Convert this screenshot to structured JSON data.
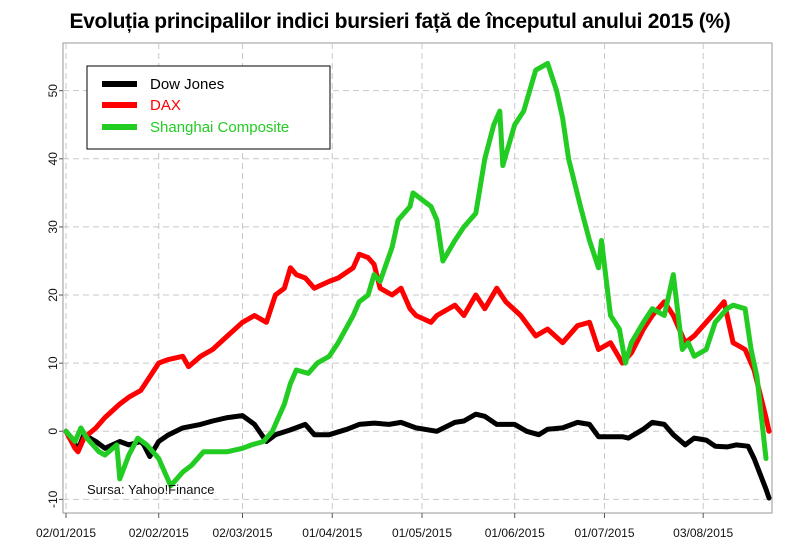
{
  "chart_data": {
    "type": "line",
    "title": "Evoluția principalilor indici bursieri față de începutul anului 2015 (%)",
    "xlabel": "",
    "ylabel": "",
    "ylim": [
      -12,
      57
    ],
    "yticks": [
      -10,
      0,
      10,
      20,
      30,
      40,
      50
    ],
    "xlim": [
      "2015-01-01",
      "2015-08-26"
    ],
    "xticks": [
      "02/01/2015",
      "02/02/2015",
      "02/03/2015",
      "01/04/2015",
      "01/05/2015",
      "01/06/2015",
      "01/07/2015",
      "03/08/2015"
    ],
    "grid": true,
    "legend_position": "top-left",
    "source": "Sursa: Yahoo!Finance",
    "series": [
      {
        "name": "Dow Jones",
        "color": "#000000",
        "points": [
          [
            "2015-01-02",
            0
          ],
          [
            "2015-01-05",
            -1.9
          ],
          [
            "2015-01-06",
            -2.7
          ],
          [
            "2015-01-08",
            -0.5
          ],
          [
            "2015-01-12",
            -1.5
          ],
          [
            "2015-01-15",
            -2.5
          ],
          [
            "2015-01-20",
            -1.5
          ],
          [
            "2015-01-23",
            -2.0
          ],
          [
            "2015-01-27",
            -1.5
          ],
          [
            "2015-01-28",
            -2.0
          ],
          [
            "2015-01-30",
            -3.7
          ],
          [
            "2015-02-02",
            -1.5
          ],
          [
            "2015-02-05",
            -0.6
          ],
          [
            "2015-02-10",
            0.5
          ],
          [
            "2015-02-16",
            1.0
          ],
          [
            "2015-02-20",
            1.5
          ],
          [
            "2015-02-25",
            2.0
          ],
          [
            "2015-03-02",
            2.3
          ],
          [
            "2015-03-06",
            1.0
          ],
          [
            "2015-03-10",
            -1.5
          ],
          [
            "2015-03-13",
            -0.5
          ],
          [
            "2015-03-18",
            0.2
          ],
          [
            "2015-03-23",
            1.0
          ],
          [
            "2015-03-26",
            -0.5
          ],
          [
            "2015-03-31",
            -0.5
          ],
          [
            "2015-04-06",
            0.3
          ],
          [
            "2015-04-10",
            1.0
          ],
          [
            "2015-04-15",
            1.2
          ],
          [
            "2015-04-20",
            1.0
          ],
          [
            "2015-04-24",
            1.3
          ],
          [
            "2015-04-29",
            0.5
          ],
          [
            "2015-05-06",
            0.0
          ],
          [
            "2015-05-12",
            1.3
          ],
          [
            "2015-05-15",
            1.5
          ],
          [
            "2015-05-19",
            2.5
          ],
          [
            "2015-05-22",
            2.2
          ],
          [
            "2015-05-26",
            1.0
          ],
          [
            "2015-06-01",
            1.0
          ],
          [
            "2015-06-05",
            0.0
          ],
          [
            "2015-06-09",
            -0.5
          ],
          [
            "2015-06-12",
            0.3
          ],
          [
            "2015-06-17",
            0.5
          ],
          [
            "2015-06-22",
            1.3
          ],
          [
            "2015-06-26",
            1.0
          ],
          [
            "2015-06-29",
            -0.8
          ],
          [
            "2015-07-03",
            -0.8
          ],
          [
            "2015-07-07",
            -0.8
          ],
          [
            "2015-07-09",
            -1.0
          ],
          [
            "2015-07-14",
            0.3
          ],
          [
            "2015-07-17",
            1.3
          ],
          [
            "2015-07-21",
            1.0
          ],
          [
            "2015-07-24",
            -0.5
          ],
          [
            "2015-07-28",
            -2.0
          ],
          [
            "2015-07-31",
            -1.0
          ],
          [
            "2015-08-04",
            -1.3
          ],
          [
            "2015-08-07",
            -2.2
          ],
          [
            "2015-08-11",
            -2.3
          ],
          [
            "2015-08-14",
            -2.0
          ],
          [
            "2015-08-18",
            -2.2
          ],
          [
            "2015-08-20",
            -4.0
          ],
          [
            "2015-08-24",
            -8.5
          ],
          [
            "2015-08-25",
            -9.8
          ]
        ]
      },
      {
        "name": "DAX",
        "color": "#ff0000",
        "points": [
          [
            "2015-01-02",
            0
          ],
          [
            "2015-01-05",
            -2.5
          ],
          [
            "2015-01-06",
            -3.0
          ],
          [
            "2015-01-08",
            -1.0
          ],
          [
            "2015-01-12",
            0.5
          ],
          [
            "2015-01-15",
            2.0
          ],
          [
            "2015-01-20",
            4.0
          ],
          [
            "2015-01-23",
            5.0
          ],
          [
            "2015-01-27",
            6.0
          ],
          [
            "2015-01-30",
            8.0
          ],
          [
            "2015-02-02",
            10.0
          ],
          [
            "2015-02-05",
            10.5
          ],
          [
            "2015-02-10",
            11.0
          ],
          [
            "2015-02-12",
            9.5
          ],
          [
            "2015-02-16",
            11.0
          ],
          [
            "2015-02-20",
            12.0
          ],
          [
            "2015-02-25",
            14.0
          ],
          [
            "2015-03-02",
            16.0
          ],
          [
            "2015-03-06",
            17.0
          ],
          [
            "2015-03-10",
            16.0
          ],
          [
            "2015-03-13",
            20.0
          ],
          [
            "2015-03-16",
            21.0
          ],
          [
            "2015-03-18",
            24.0
          ],
          [
            "2015-03-20",
            23.0
          ],
          [
            "2015-03-23",
            22.5
          ],
          [
            "2015-03-26",
            21.0
          ],
          [
            "2015-03-31",
            22.0
          ],
          [
            "2015-04-03",
            22.5
          ],
          [
            "2015-04-08",
            24.0
          ],
          [
            "2015-04-10",
            26.0
          ],
          [
            "2015-04-13",
            25.5
          ],
          [
            "2015-04-15",
            24.5
          ],
          [
            "2015-04-17",
            21.0
          ],
          [
            "2015-04-21",
            20.0
          ],
          [
            "2015-04-24",
            21.0
          ],
          [
            "2015-04-27",
            18.0
          ],
          [
            "2015-04-29",
            17.0
          ],
          [
            "2015-05-04",
            16.0
          ],
          [
            "2015-05-06",
            17.0
          ],
          [
            "2015-05-12",
            18.5
          ],
          [
            "2015-05-15",
            17.0
          ],
          [
            "2015-05-19",
            20.0
          ],
          [
            "2015-05-22",
            18.0
          ],
          [
            "2015-05-26",
            21.0
          ],
          [
            "2015-05-29",
            19.0
          ],
          [
            "2015-06-03",
            17.0
          ],
          [
            "2015-06-08",
            14.0
          ],
          [
            "2015-06-12",
            15.0
          ],
          [
            "2015-06-17",
            13.0
          ],
          [
            "2015-06-22",
            15.5
          ],
          [
            "2015-06-26",
            16.0
          ],
          [
            "2015-06-29",
            12.0
          ],
          [
            "2015-07-03",
            13.0
          ],
          [
            "2015-07-07",
            10.0
          ],
          [
            "2015-07-10",
            11.5
          ],
          [
            "2015-07-14",
            15.0
          ],
          [
            "2015-07-17",
            17.0
          ],
          [
            "2015-07-21",
            19.0
          ],
          [
            "2015-07-24",
            17.0
          ],
          [
            "2015-07-28",
            13.0
          ],
          [
            "2015-07-31",
            14.0
          ],
          [
            "2015-08-04",
            16.0
          ],
          [
            "2015-08-07",
            17.5
          ],
          [
            "2015-08-10",
            19.0
          ],
          [
            "2015-08-13",
            13.0
          ],
          [
            "2015-08-17",
            12.0
          ],
          [
            "2015-08-20",
            9.0
          ],
          [
            "2015-08-24",
            2.0
          ],
          [
            "2015-08-25",
            0.0
          ]
        ]
      },
      {
        "name": "Shanghai Composite",
        "color": "#22cc22",
        "points": [
          [
            "2015-01-02",
            0
          ],
          [
            "2015-01-05",
            -1.5
          ],
          [
            "2015-01-07",
            0.5
          ],
          [
            "2015-01-09",
            -1.0
          ],
          [
            "2015-01-13",
            -3.0
          ],
          [
            "2015-01-15",
            -3.5
          ],
          [
            "2015-01-19",
            -2.0
          ],
          [
            "2015-01-20",
            -7.0
          ],
          [
            "2015-01-23",
            -3.5
          ],
          [
            "2015-01-26",
            -1.0
          ],
          [
            "2015-01-29",
            -2.0
          ],
          [
            "2015-02-02",
            -4.0
          ],
          [
            "2015-02-04",
            -6.0
          ],
          [
            "2015-02-06",
            -8.0
          ],
          [
            "2015-02-10",
            -6.0
          ],
          [
            "2015-02-13",
            -5.0
          ],
          [
            "2015-02-17",
            -3.0
          ],
          [
            "2015-02-25",
            -3.0
          ],
          [
            "2015-03-02",
            -2.5
          ],
          [
            "2015-03-05",
            -2.0
          ],
          [
            "2015-03-09",
            -1.5
          ],
          [
            "2015-03-12",
            0.0
          ],
          [
            "2015-03-16",
            4.0
          ],
          [
            "2015-03-18",
            7.0
          ],
          [
            "2015-03-20",
            9.0
          ],
          [
            "2015-03-24",
            8.5
          ],
          [
            "2015-03-27",
            10.0
          ],
          [
            "2015-03-31",
            11.0
          ],
          [
            "2015-04-03",
            13.0
          ],
          [
            "2015-04-08",
            17.0
          ],
          [
            "2015-04-10",
            19.0
          ],
          [
            "2015-04-13",
            20.0
          ],
          [
            "2015-04-15",
            23.0
          ],
          [
            "2015-04-17",
            22.0
          ],
          [
            "2015-04-21",
            27.0
          ],
          [
            "2015-04-23",
            31.0
          ],
          [
            "2015-04-27",
            33.0
          ],
          [
            "2015-04-28",
            35.0
          ],
          [
            "2015-05-04",
            33.0
          ],
          [
            "2015-05-06",
            31.0
          ],
          [
            "2015-05-08",
            25.0
          ],
          [
            "2015-05-12",
            28.0
          ],
          [
            "2015-05-15",
            30.0
          ],
          [
            "2015-05-19",
            32.0
          ],
          [
            "2015-05-22",
            40.0
          ],
          [
            "2015-05-25",
            45.0
          ],
          [
            "2015-05-27",
            47.0
          ],
          [
            "2015-05-28",
            39.0
          ],
          [
            "2015-06-01",
            45.0
          ],
          [
            "2015-06-04",
            47.0
          ],
          [
            "2015-06-08",
            53.0
          ],
          [
            "2015-06-12",
            54.0
          ],
          [
            "2015-06-15",
            50.0
          ],
          [
            "2015-06-17",
            46.0
          ],
          [
            "2015-06-19",
            40.0
          ],
          [
            "2015-06-23",
            33.0
          ],
          [
            "2015-06-26",
            28.0
          ],
          [
            "2015-06-29",
            24.0
          ],
          [
            "2015-06-30",
            28.0
          ],
          [
            "2015-07-03",
            17.0
          ],
          [
            "2015-07-06",
            15.0
          ],
          [
            "2015-07-08",
            10.0
          ],
          [
            "2015-07-10",
            13.0
          ],
          [
            "2015-07-14",
            16.0
          ],
          [
            "2015-07-17",
            18.0
          ],
          [
            "2015-07-21",
            17.0
          ],
          [
            "2015-07-24",
            23.0
          ],
          [
            "2015-07-27",
            12.0
          ],
          [
            "2015-07-29",
            13.0
          ],
          [
            "2015-07-31",
            11.0
          ],
          [
            "2015-08-04",
            12.0
          ],
          [
            "2015-08-07",
            16.0
          ],
          [
            "2015-08-11",
            18.0
          ],
          [
            "2015-08-13",
            18.5
          ],
          [
            "2015-08-17",
            18.0
          ],
          [
            "2015-08-19",
            12.0
          ],
          [
            "2015-08-21",
            8.0
          ],
          [
            "2015-08-24",
            -4.0
          ]
        ]
      }
    ]
  }
}
